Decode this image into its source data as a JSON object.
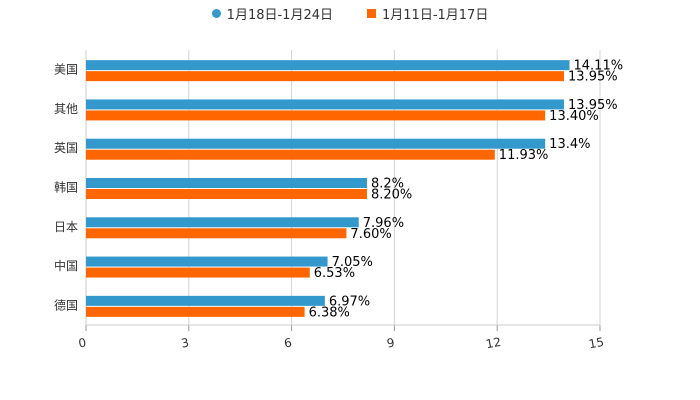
{
  "chart_data": {
    "type": "bar",
    "orientation": "horizontal",
    "categories": [
      "美国",
      "其他",
      "英国",
      "韩国",
      "日本",
      "中国",
      "德国"
    ],
    "series": [
      {
        "name": "1月18日-1月24日",
        "color": "#3399cc",
        "values": [
          14.11,
          13.95,
          13.4,
          8.2,
          7.96,
          7.05,
          6.97
        ],
        "labels": [
          "14.11%",
          "13.95%",
          "13.4%",
          "8.2%",
          "7.96%",
          "7.05%",
          "6.97%"
        ]
      },
      {
        "name": "1月11日-1月17日",
        "color": "#ff6600",
        "values": [
          13.95,
          13.4,
          11.93,
          8.2,
          7.6,
          6.53,
          6.38
        ],
        "labels": [
          "13.95%",
          "13.40%",
          "11.93%",
          "8.20%",
          "7.60%",
          "6.53%",
          "6.38%"
        ]
      }
    ],
    "xlim": [
      0,
      15
    ],
    "xticks": [
      "0",
      "3",
      "6",
      "9",
      "12",
      "15"
    ],
    "grid": true,
    "legend_position": "top-center",
    "title": "",
    "xlabel": "",
    "ylabel": ""
  }
}
